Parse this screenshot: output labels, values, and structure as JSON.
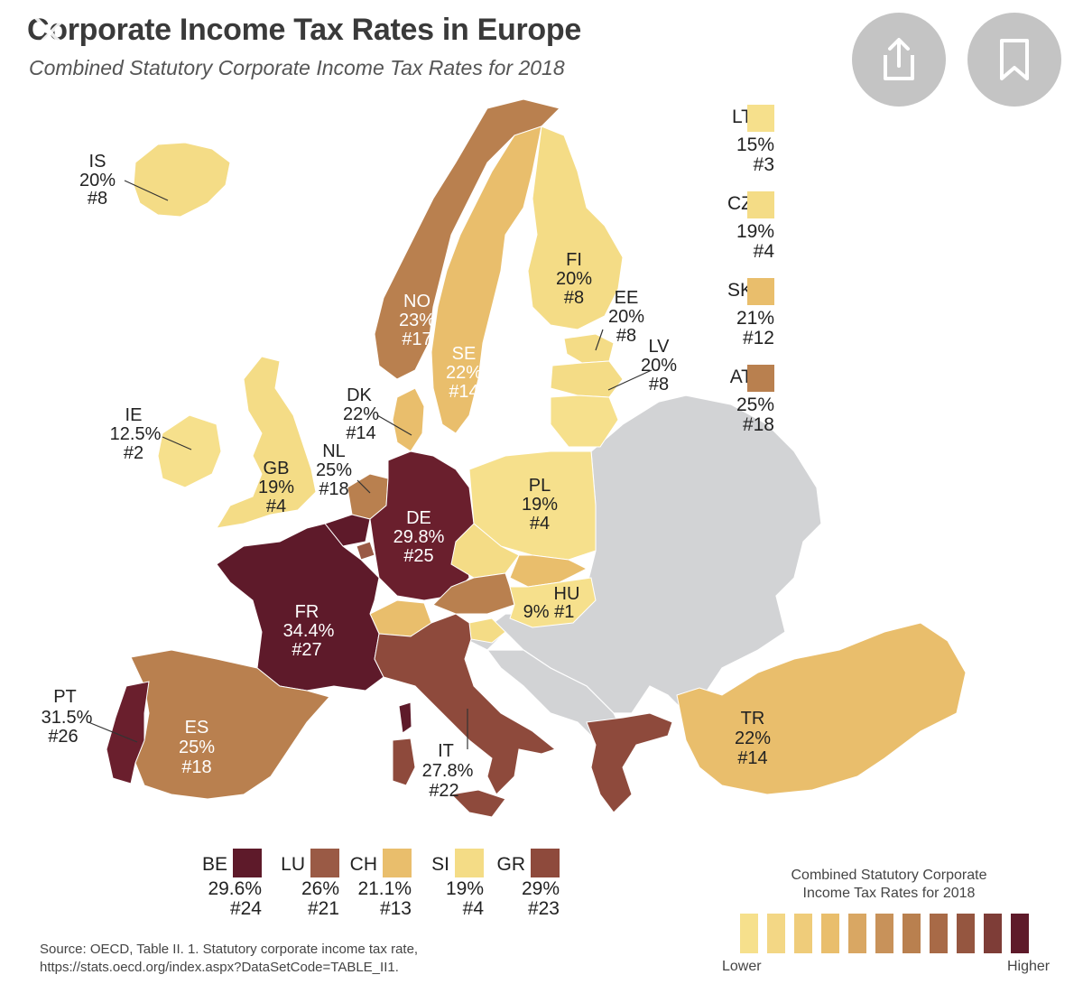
{
  "title": "Corporate Income Tax Rates in Europe",
  "subtitle": "Combined Statutory Corporate Income Tax Rates for 2018",
  "ui": {
    "close_icon": "close-icon",
    "share_icon": "share-icon",
    "bookmark_icon": "bookmark-icon"
  },
  "colors": {
    "lowest": "#f6e08c",
    "low": "#f4dc86",
    "lowmid": "#e9be6c",
    "mid": "#b9804f",
    "midhigh": "#8e4a3c",
    "high": "#5e1a2a",
    "non_oecd": "#d2d3d5"
  },
  "countries": [
    {
      "code": "IS",
      "rate": "20%",
      "rank": "#8"
    },
    {
      "code": "IE",
      "rate": "12.5%",
      "rank": "#2"
    },
    {
      "code": "GB",
      "rate": "19%",
      "rank": "#4"
    },
    {
      "code": "NO",
      "rate": "23%",
      "rank": "#17"
    },
    {
      "code": "SE",
      "rate": "22%",
      "rank": "#14"
    },
    {
      "code": "FI",
      "rate": "20%",
      "rank": "#8"
    },
    {
      "code": "EE",
      "rate": "20%",
      "rank": "#8"
    },
    {
      "code": "LV",
      "rate": "20%",
      "rank": "#8"
    },
    {
      "code": "DK",
      "rate": "22%",
      "rank": "#14"
    },
    {
      "code": "NL",
      "rate": "25%",
      "rank": "#18"
    },
    {
      "code": "DE",
      "rate": "29.8%",
      "rank": "#25"
    },
    {
      "code": "PL",
      "rate": "19%",
      "rank": "#4"
    },
    {
      "code": "HU",
      "rate": "9% #1",
      "rank": ""
    },
    {
      "code": "FR",
      "rate": "34.4%",
      "rank": "#27"
    },
    {
      "code": "PT",
      "rate": "31.5%",
      "rank": "#26"
    },
    {
      "code": "ES",
      "rate": "25%",
      "rank": "#18"
    },
    {
      "code": "IT",
      "rate": "27.8%",
      "rank": "#22"
    },
    {
      "code": "TR",
      "rate": "22%",
      "rank": "#14"
    }
  ],
  "side_legend": [
    {
      "code": "LT",
      "rate": "15%",
      "rank": "#3",
      "color": "#f6e08c"
    },
    {
      "code": "CZ",
      "rate": "19%",
      "rank": "#4",
      "color": "#f4dc86"
    },
    {
      "code": "SK",
      "rate": "21%",
      "rank": "#12",
      "color": "#e9be6c"
    },
    {
      "code": "AT",
      "rate": "25%",
      "rank": "#18",
      "color": "#b9804f"
    }
  ],
  "bottom_legend": [
    {
      "code": "BE",
      "rate": "29.6%",
      "rank": "#24",
      "color": "#5e1a2a"
    },
    {
      "code": "LU",
      "rate": "26%",
      "rank": "#21",
      "color": "#9a5a45"
    },
    {
      "code": "CH",
      "rate": "21.1%",
      "rank": "#13",
      "color": "#e9be6c"
    },
    {
      "code": "SI",
      "rate": "19%",
      "rank": "#4",
      "color": "#f4dc86"
    },
    {
      "code": "GR",
      "rate": "29%",
      "rank": "#23",
      "color": "#8e4a3c"
    }
  ],
  "scale": {
    "title_line1": "Combined Statutory Corporate",
    "title_line2": "Income Tax Rates for 2018",
    "low_label": "Lower",
    "high_label": "Higher",
    "colors": [
      "#f6e08c",
      "#f3d785",
      "#efcc7a",
      "#e9be6c",
      "#d9a763",
      "#c8925a",
      "#b9804f",
      "#a86a47",
      "#955640",
      "#7e3d37",
      "#5e1a2a"
    ]
  },
  "source": {
    "line1": "Source:  OECD, Table II. 1. Statutory corporate income tax rate,",
    "line2": "https://stats.oecd.org/index.aspx?DataSetCode=TABLE_II1."
  }
}
